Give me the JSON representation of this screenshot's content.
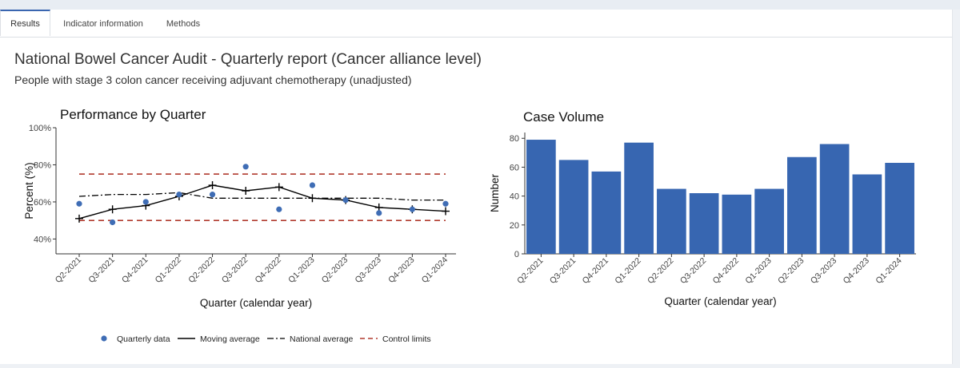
{
  "tabs": [
    "Results",
    "Indicator information",
    "Methods"
  ],
  "header": {
    "title": "National Bowel Cancer Audit - Quarterly report (Cancer alliance level)",
    "subtitle": "People with stage 3 colon cancer receiving adjuvant chemotherapy (unadjusted)"
  },
  "colors": {
    "accent": "#3a66b0",
    "point": "#3f6db5",
    "bar": "#3766b1",
    "control": "#b03a2e",
    "line": "#000000"
  },
  "legend": {
    "quarterly": "Quarterly data",
    "moving": "Moving average",
    "national": "National average",
    "control": "Control limits"
  },
  "chart_data": [
    {
      "type": "line",
      "title": "Performance by Quarter",
      "xlabel": "Quarter (calendar year)",
      "ylabel": "Percent (%)",
      "ylim": [
        32,
        100
      ],
      "yticks": [
        "40%",
        "60%",
        "80%",
        "100%"
      ],
      "categories": [
        "Q2-2021",
        "Q3-2021",
        "Q4-2021",
        "Q1-2022",
        "Q2-2022",
        "Q3-2022",
        "Q4-2022",
        "Q1-2023",
        "Q2-2023",
        "Q3-2023",
        "Q4-2023",
        "Q1-2024"
      ],
      "series": [
        {
          "name": "Quarterly data",
          "values": [
            59,
            49,
            60,
            64,
            64,
            79,
            56,
            69,
            61,
            54,
            56,
            59
          ]
        },
        {
          "name": "Moving average",
          "values": [
            51,
            56,
            58,
            63,
            69,
            66,
            68,
            62,
            61,
            57,
            56,
            55
          ]
        },
        {
          "name": "National average",
          "values": [
            63,
            64,
            64,
            65,
            62,
            62,
            62,
            62,
            62,
            62,
            61,
            61
          ]
        }
      ],
      "control_limits": [
        50,
        75
      ],
      "legend_position": "bottom"
    },
    {
      "type": "bar",
      "title": "Case Volume",
      "xlabel": "Quarter (calendar year)",
      "ylabel": "Number",
      "ylim": [
        0,
        84
      ],
      "yticks": [
        0,
        20,
        40,
        60,
        80
      ],
      "categories": [
        "Q2-2021",
        "Q3-2021",
        "Q4-2021",
        "Q1-2022",
        "Q2-2022",
        "Q3-2022",
        "Q4-2022",
        "Q1-2023",
        "Q2-2023",
        "Q3-2023",
        "Q4-2023",
        "Q1-2024"
      ],
      "values": [
        79,
        65,
        57,
        77,
        45,
        42,
        41,
        45,
        67,
        76,
        55,
        63
      ]
    }
  ]
}
